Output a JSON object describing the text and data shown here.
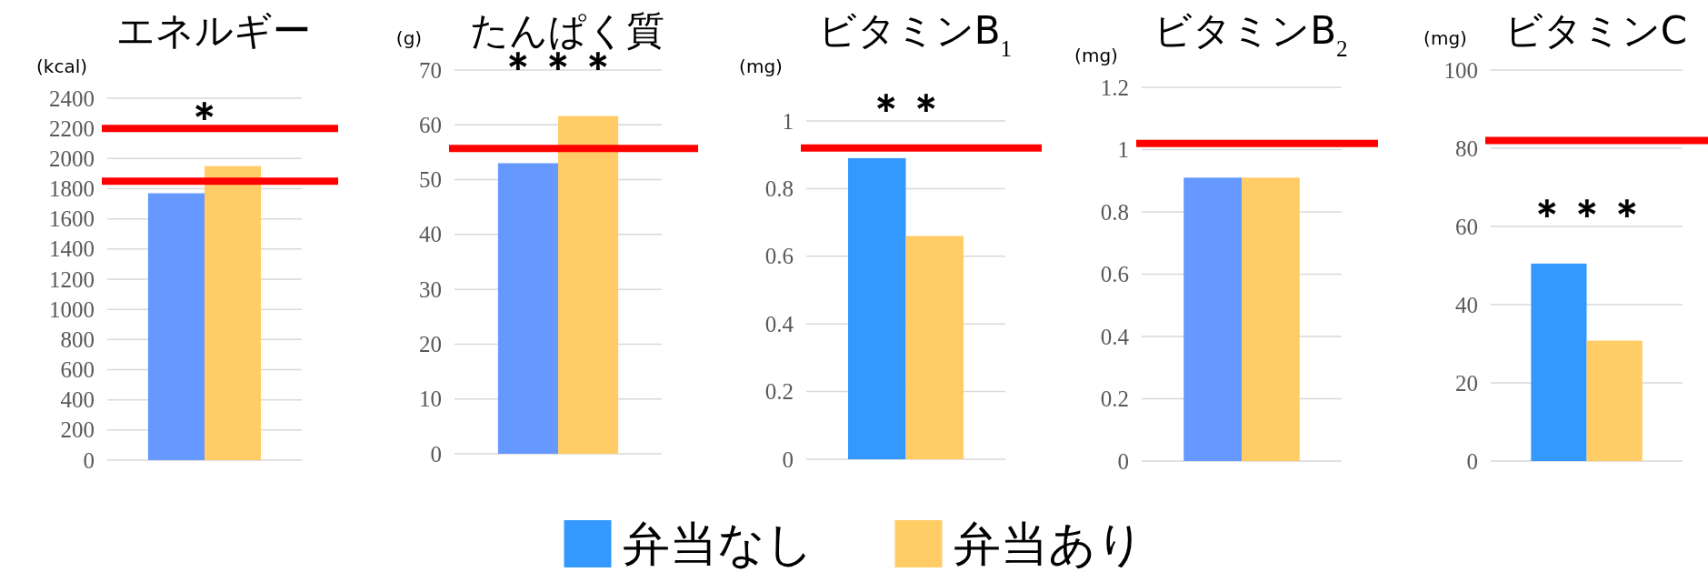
{
  "chart_data": [
    {
      "type": "bar",
      "title": "エネルギー",
      "ylabel": "(kcal)",
      "categories": [
        null
      ],
      "series": [
        {
          "color": "#6699ff",
          "values": [
            1770
          ]
        },
        {
          "color": "#ffcc66",
          "values": [
            1950
          ]
        }
      ],
      "ylim": [
        0,
        2400
      ],
      "yticks": [
        0,
        200,
        400,
        600,
        800,
        1000,
        1200,
        1400,
        1600,
        1800,
        2000,
        2200,
        2400
      ],
      "grid": "y",
      "ref_lines": [
        {
          "axis": "y",
          "value": 2200,
          "color": "#ff0000"
        },
        {
          "axis": "y",
          "value": 1850,
          "color": "#ff0000"
        }
      ],
      "annotations": [
        "＊"
      ]
    },
    {
      "type": "bar",
      "title": "たんぱく質",
      "ylabel": "(g)",
      "categories": [
        null
      ],
      "series": [
        {
          "color": "#6699ff",
          "values": [
            53
          ]
        },
        {
          "color": "#ffcc66",
          "values": [
            61.6
          ]
        }
      ],
      "ylim": [
        0,
        70
      ],
      "yticks": [
        0,
        10,
        20,
        30,
        40,
        50,
        60,
        70
      ],
      "grid": "y",
      "ref_lines": [
        {
          "axis": "y",
          "value": 55.7,
          "color": "#ff0000"
        }
      ],
      "annotations": [
        "＊＊＊"
      ]
    },
    {
      "type": "bar",
      "title": "ビタミンB$_{1}$",
      "ylabel": "(mg)",
      "categories": [
        null
      ],
      "series": [
        {
          "color": "#3399ff",
          "values": [
            0.89
          ]
        },
        {
          "color": "#ffcc66",
          "values": [
            0.66
          ]
        }
      ],
      "ylim": [
        0,
        1
      ],
      "yticks": [
        0,
        0.2,
        0.4,
        0.6,
        0.8,
        1
      ],
      "grid": "y",
      "ref_lines": [
        {
          "axis": "y",
          "value": 0.92,
          "color": "#ff0000"
        }
      ],
      "annotations": [
        "＊＊"
      ]
    },
    {
      "type": "bar",
      "title": "ビタミンB$_{2}$",
      "ylabel": "(mg)",
      "categories": [
        null
      ],
      "series": [
        {
          "color": "#6699ff",
          "values": [
            0.91
          ]
        },
        {
          "color": "#ffcc66",
          "values": [
            0.91
          ]
        }
      ],
      "ylim": [
        0,
        1.2
      ],
      "yticks": [
        0,
        0.2,
        0.4,
        0.6,
        0.8,
        1,
        1.2
      ],
      "grid": "y",
      "ref_lines": [
        {
          "axis": "y",
          "value": 1.02,
          "color": "#ff0000"
        }
      ]
    },
    {
      "type": "bar",
      "title": "ビタミンC",
      "ylabel": "(mg)",
      "categories": [
        null
      ],
      "series": [
        {
          "name": "弁当なし",
          "color": "#3399ff",
          "values": [
            50.5
          ]
        },
        {
          "name": "弁当あり",
          "color": "#ffcc66",
          "values": [
            30.8
          ]
        }
      ],
      "ylim": [
        0,
        100
      ],
      "yticks": [
        0,
        20,
        40,
        60,
        80,
        100
      ],
      "grid": "y",
      "legend": "bottom",
      "ref_lines": [
        {
          "axis": "y",
          "value": 82,
          "color": "#ff0000"
        }
      ],
      "annotations": [
        "＊＊＊"
      ]
    }
  ]
}
